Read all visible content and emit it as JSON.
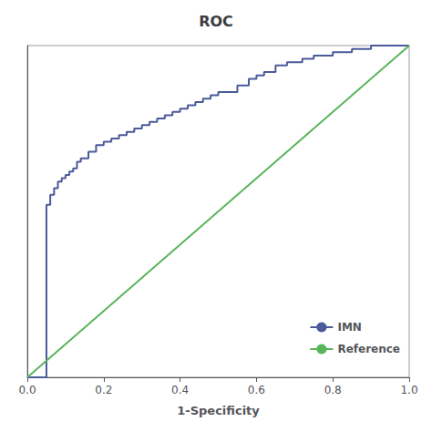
{
  "chart_data": {
    "type": "line",
    "title": "ROC",
    "xlabel": "1-Specificity",
    "xlim": [
      0.0,
      1.0
    ],
    "ylim": [
      0.0,
      1.0
    ],
    "xticks": [
      {
        "value": 0.0,
        "label": "0.0"
      },
      0.2,
      0.4,
      0.6,
      0.8,
      {
        "value": 1.0,
        "label": "1.0"
      }
    ],
    "yticks": [],
    "tick_labels": "x",
    "grid": false,
    "legend": "lower right",
    "series": [
      {
        "name": "IMN",
        "color": "#4a5a9a",
        "x": [
          0.0,
          0.0,
          0.05,
          0.05,
          0.06,
          0.06,
          0.07,
          0.07,
          0.08,
          0.08,
          0.09,
          0.09,
          0.1,
          0.1,
          0.11,
          0.11,
          0.12,
          0.12,
          0.13,
          0.13,
          0.14,
          0.14,
          0.16,
          0.16,
          0.18,
          0.18,
          0.2,
          0.2,
          0.22,
          0.22,
          0.24,
          0.24,
          0.26,
          0.26,
          0.28,
          0.28,
          0.3,
          0.3,
          0.32,
          0.32,
          0.34,
          0.34,
          0.36,
          0.36,
          0.38,
          0.38,
          0.4,
          0.4,
          0.42,
          0.42,
          0.44,
          0.44,
          0.46,
          0.46,
          0.48,
          0.48,
          0.5,
          0.5,
          0.55,
          0.55,
          0.58,
          0.58,
          0.6,
          0.6,
          0.62,
          0.62,
          0.65,
          0.65,
          0.68,
          0.68,
          0.72,
          0.72,
          0.75,
          0.75,
          0.8,
          0.8,
          0.85,
          0.85,
          0.9,
          0.9,
          0.95,
          0.95,
          1.0,
          1.0
        ],
        "values": [
          0.0,
          0.0,
          0.0,
          0.52,
          0.52,
          0.55,
          0.55,
          0.57,
          0.57,
          0.59,
          0.59,
          0.6,
          0.6,
          0.61,
          0.61,
          0.62,
          0.62,
          0.63,
          0.63,
          0.65,
          0.65,
          0.66,
          0.66,
          0.68,
          0.68,
          0.7,
          0.7,
          0.71,
          0.71,
          0.72,
          0.72,
          0.73,
          0.73,
          0.74,
          0.74,
          0.75,
          0.75,
          0.76,
          0.76,
          0.77,
          0.77,
          0.78,
          0.78,
          0.79,
          0.79,
          0.8,
          0.8,
          0.81,
          0.81,
          0.82,
          0.82,
          0.83,
          0.83,
          0.84,
          0.84,
          0.85,
          0.85,
          0.86,
          0.86,
          0.88,
          0.88,
          0.9,
          0.9,
          0.91,
          0.91,
          0.92,
          0.92,
          0.94,
          0.94,
          0.95,
          0.95,
          0.96,
          0.96,
          0.97,
          0.97,
          0.98,
          0.98,
          0.99,
          0.99,
          1.0,
          1.0,
          1.0,
          1.0,
          1.0
        ]
      },
      {
        "name": "Reference",
        "color": "#5ab55a",
        "x": [
          0,
          1
        ],
        "values": [
          0,
          1
        ]
      }
    ]
  }
}
